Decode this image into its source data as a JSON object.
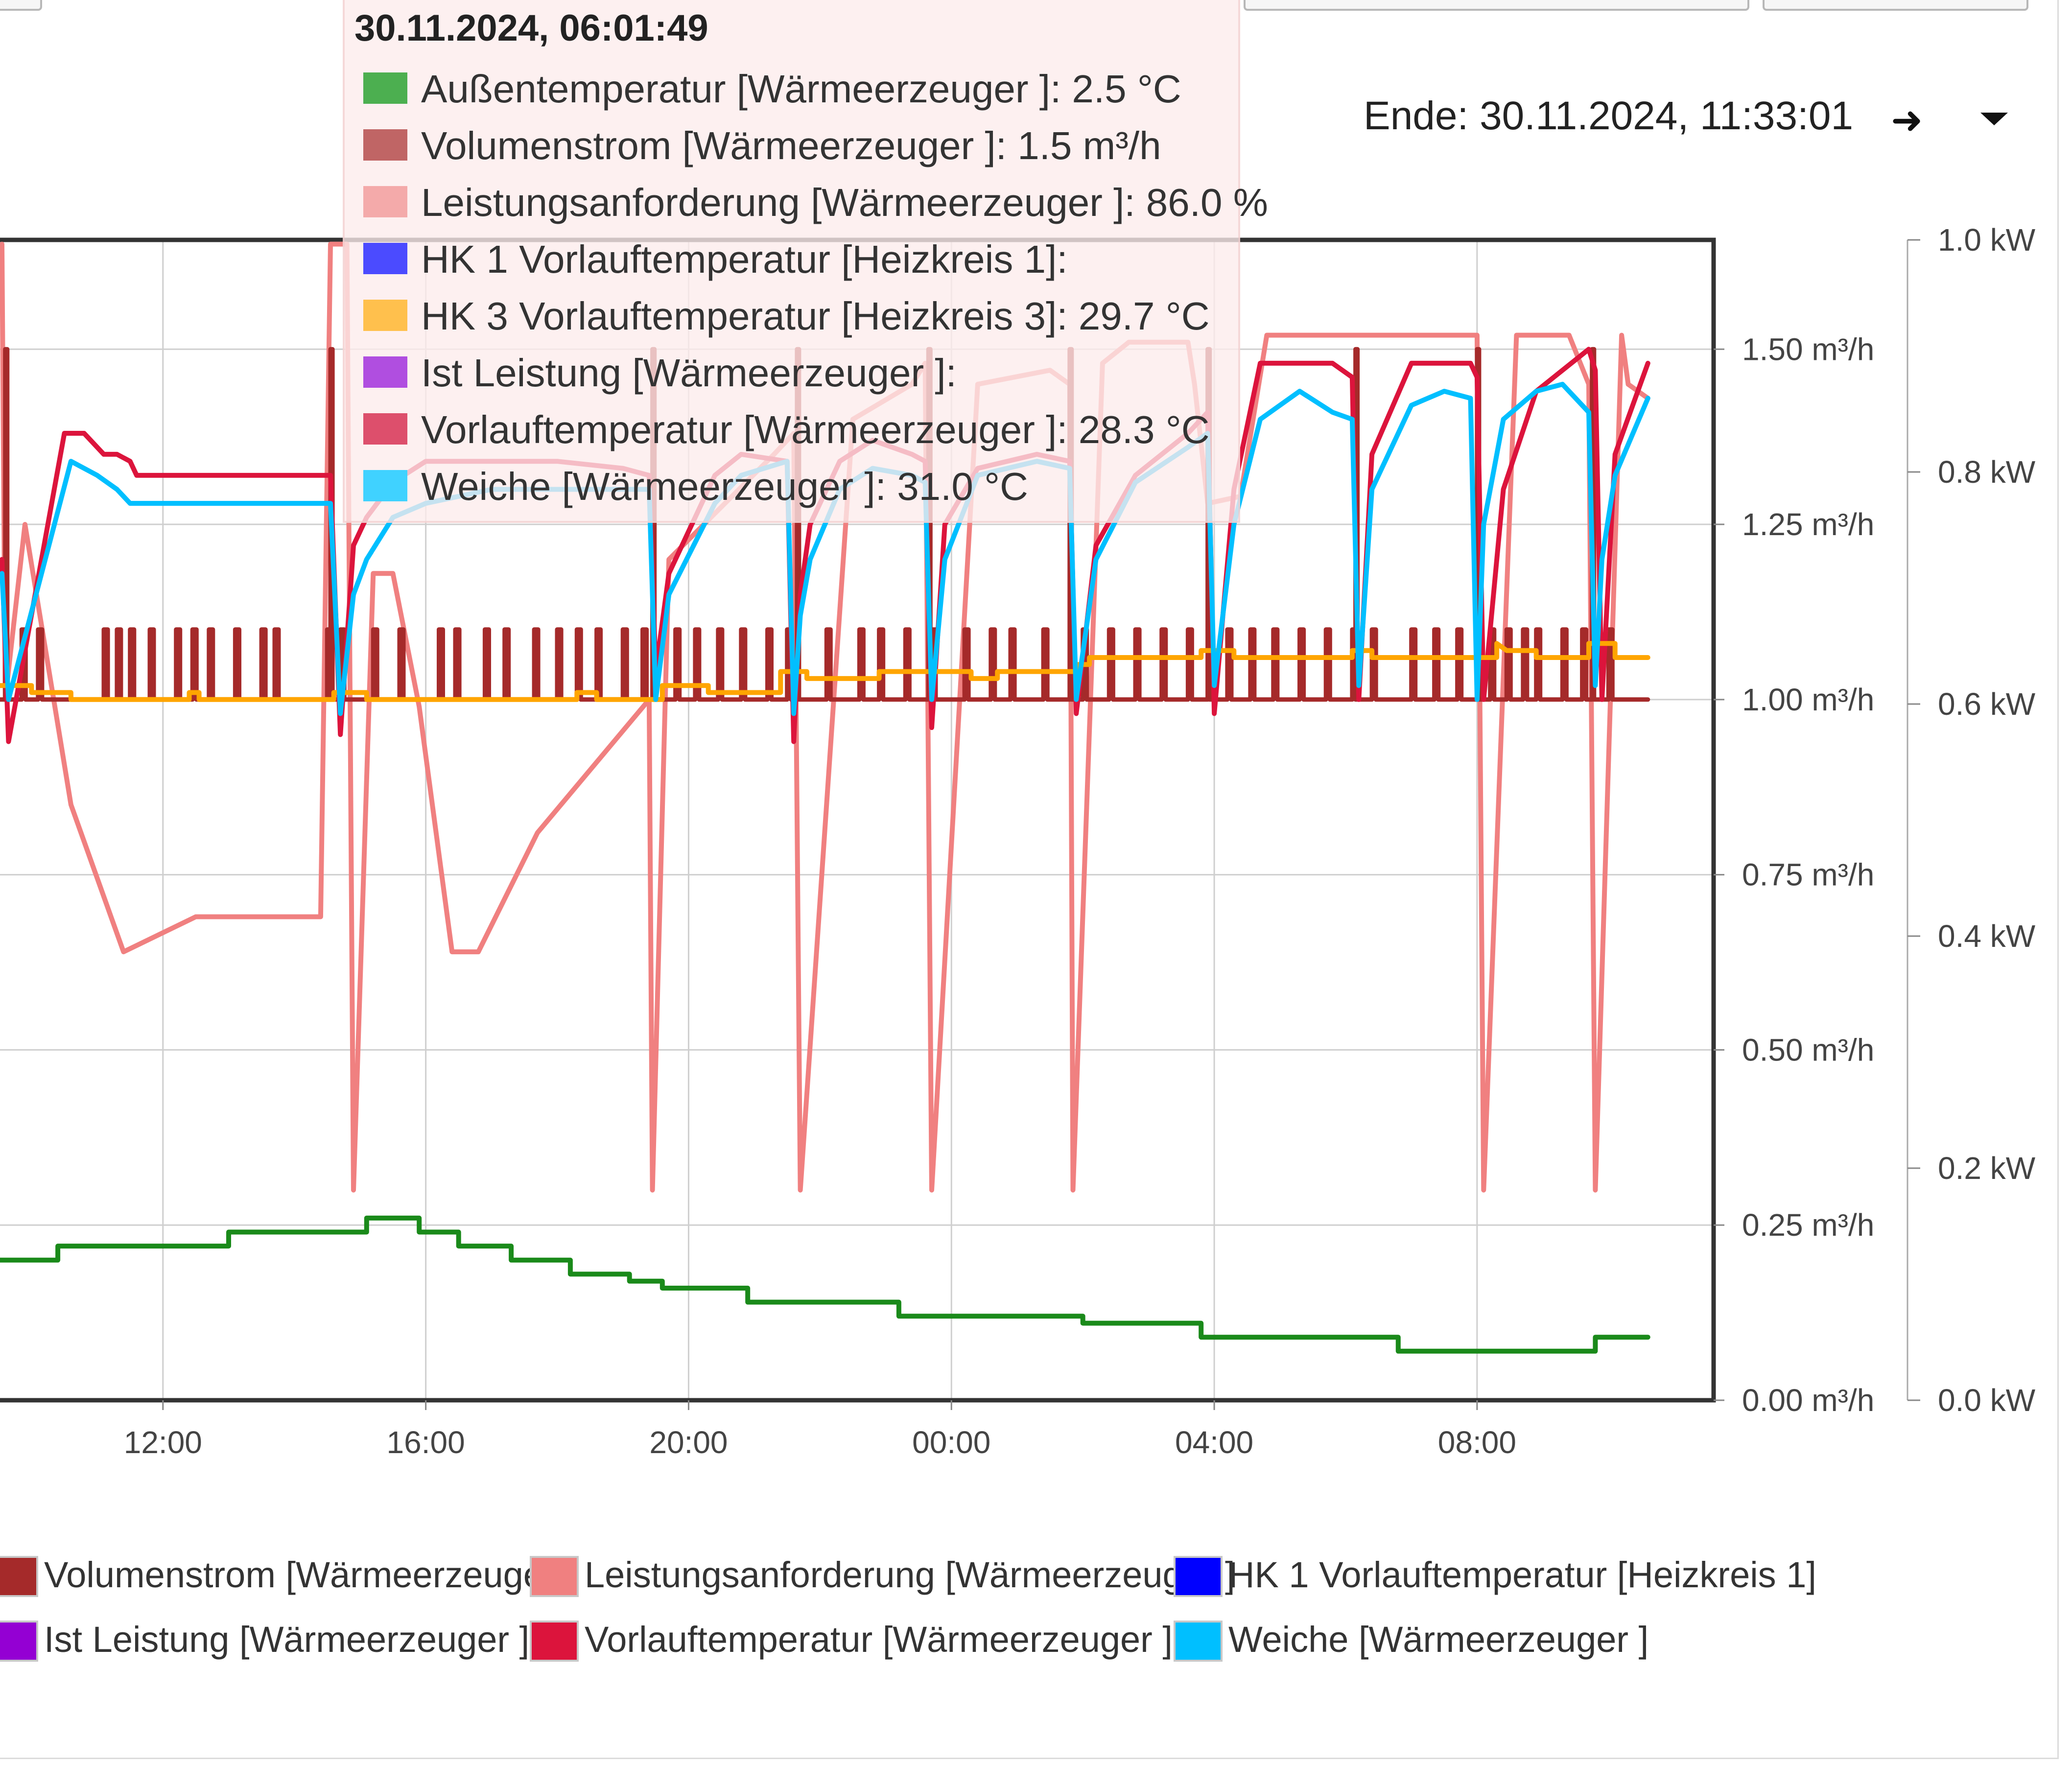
{
  "header": {
    "end_label": "Ende: 30.11.2024, 11:33:01",
    "forward_icon": "arrow-right-icon",
    "menu_icon": "caret-down-icon"
  },
  "tooltip": {
    "timestamp": "30.11.2024, 06:01:49",
    "rows": [
      {
        "label": "Außentemperatur [Wärmeerzeuger ]: 2.5 °C",
        "color": "#4caf50"
      },
      {
        "label": "Volumenstrom [Wärmeerzeuger ]: 1.5 m³/h",
        "color": "#c06565"
      },
      {
        "label": "Leistungsanforderung [Wärmeerzeuger ]: 86.0 %",
        "color": "#f4aaaa"
      },
      {
        "label": "HK 1 Vorlauftemperatur [Heizkreis 1]:",
        "color": "#4b4bff"
      },
      {
        "label": "HK 3 Vorlauftemperatur [Heizkreis 3]: 29.7 °C",
        "color": "#ffc04d"
      },
      {
        "label": "Ist Leistung [Wärmeerzeuger ]:",
        "color": "#b04ee0"
      },
      {
        "label": "Vorlauftemperatur [Wärmeerzeuger ]: 28.3 °C",
        "color": "#dd4f6c"
      },
      {
        "label": "Weiche [Wärmeerzeuger ]: 31.0 °C",
        "color": "#40d2ff"
      }
    ]
  },
  "legend": [
    {
      "label": "Volumenstrom [Wärmeerzeuger ]",
      "color": "#a52a2a"
    },
    {
      "label": "Leistungsanforderung [Wärmeerzeuger ]",
      "color": "#f08080"
    },
    {
      "label": "HK 1 Vorlauftemperatur [Heizkreis 1]",
      "color": "#0000ff"
    },
    {
      "label": "Ist Leistung [Wärmeerzeuger ]",
      "color": "#9400d3"
    },
    {
      "label": "Vorlauftemperatur [Wärmeerzeuger ]",
      "color": "#dc143c"
    },
    {
      "label": "Weiche [Wärmeerzeuger ]",
      "color": "#00bfff"
    }
  ],
  "chart_data": {
    "type": "line",
    "x_unit": "hours since 2024-11-29 00:00",
    "xlim": [
      9.52,
      35.6
    ],
    "x_ticks": [
      {
        "label": "12:00",
        "value": 12
      },
      {
        "label": "16:00",
        "value": 16
      },
      {
        "label": "20:00",
        "value": 20
      },
      {
        "label": "00:00",
        "value": 24
      },
      {
        "label": "04:00",
        "value": 28
      },
      {
        "label": "08:00",
        "value": 32
      }
    ],
    "y_left": {
      "ylim": [
        0,
        1.656
      ],
      "ticks": [
        "0.00 m³/h",
        "0.25 m³/h",
        "0.50 m³/h",
        "0.75 m³/h",
        "1.00 m³/h",
        "1.25 m³/h",
        "1.50 m³/h"
      ],
      "tick_values": [
        0,
        0.25,
        0.5,
        0.75,
        1.0,
        1.25,
        1.5
      ]
    },
    "y_right": {
      "ylim": [
        0,
        1.0
      ],
      "ticks": [
        "0.0 kW",
        "0.2 kW",
        "0.4 kW",
        "0.6 kW",
        "0.8 kW",
        "1.0 kW"
      ],
      "tick_values": [
        0,
        0.2,
        0.4,
        0.6,
        0.8,
        1.0
      ]
    },
    "series": [
      {
        "name": "Außentemperatur [Wärmeerzeuger ]",
        "color": "#1a8a1a",
        "x": [
          9.52,
          10.4,
          10.4,
          13.0,
          13.0,
          15.1,
          15.1,
          15.9,
          15.9,
          16.5,
          16.5,
          17.3,
          17.3,
          18.2,
          18.2,
          19.1,
          19.1,
          19.6,
          19.6,
          20.9,
          20.9,
          23.2,
          23.2,
          26.0,
          26.0,
          27.8,
          27.8,
          30.8,
          30.8,
          33.8,
          33.8,
          34.6
        ],
        "y": [
          0.2,
          0.2,
          0.22,
          0.22,
          0.24,
          0.24,
          0.26,
          0.26,
          0.24,
          0.24,
          0.22,
          0.22,
          0.2,
          0.2,
          0.18,
          0.18,
          0.17,
          0.17,
          0.16,
          0.16,
          0.14,
          0.14,
          0.12,
          0.12,
          0.11,
          0.11,
          0.09,
          0.09,
          0.07,
          0.07,
          0.09,
          0.09
        ]
      },
      {
        "name": "Leistungsanforderung [Wärmeerzeuger ]",
        "color": "#f08080",
        "x": [
          9.55,
          9.6,
          9.9,
          10.6,
          11.4,
          12.5,
          14.4,
          14.55,
          14.8,
          14.9,
          15.2,
          15.5,
          15.9,
          16.4,
          16.8,
          17.7,
          19.4,
          19.45,
          19.7,
          21.3,
          21.6,
          21.7,
          22.5,
          23.4,
          23.6,
          23.7,
          24.4,
          25.5,
          25.8,
          25.85,
          26.3,
          26.7,
          27.6,
          27.7,
          27.9,
          28.4,
          28.8,
          29.0,
          30.4,
          30.6,
          31.4,
          31.8,
          32.0,
          32.1,
          32.6,
          33.4,
          33.7,
          33.8,
          34.2,
          34.3,
          34.6
        ],
        "y": [
          1.65,
          1.0,
          1.25,
          0.85,
          0.64,
          0.69,
          0.69,
          1.65,
          1.65,
          0.3,
          1.18,
          1.18,
          0.99,
          0.64,
          0.64,
          0.81,
          1.0,
          0.3,
          1.2,
          1.35,
          1.38,
          0.3,
          1.4,
          1.45,
          1.48,
          0.3,
          1.45,
          1.47,
          1.45,
          0.3,
          1.48,
          1.51,
          1.51,
          1.45,
          1.28,
          1.29,
          1.52,
          1.52,
          1.52,
          1.52,
          1.52,
          1.52,
          1.52,
          0.3,
          1.52,
          1.52,
          1.45,
          0.3,
          1.52,
          1.45,
          1.43
        ]
      },
      {
        "name": "Volumenstrom [Wärmeerzeuger ]",
        "color": "#a52a2a",
        "pulses": [
          9.85,
          10.1,
          11.1,
          11.3,
          11.5,
          11.8,
          12.2,
          12.45,
          12.7,
          13.1,
          13.5,
          13.7,
          14.5,
          14.7,
          15.2,
          15.6,
          16.2,
          16.45,
          16.9,
          17.2,
          17.65,
          18.0,
          18.3,
          18.6,
          19.0,
          19.3,
          19.8,
          20.1,
          20.45,
          20.8,
          21.2,
          21.5,
          22.1,
          22.6,
          22.9,
          23.3,
          23.7,
          24.2,
          24.6,
          24.9,
          25.4,
          26.0,
          26.4,
          26.8,
          27.2,
          27.6,
          28.2,
          28.55,
          28.9,
          29.3,
          29.7,
          30.1,
          30.4,
          31.0,
          31.35,
          31.7,
          32.2,
          32.45,
          32.7,
          32.9,
          33.3,
          33.6,
          34.0
        ],
        "pulse_low": 1.0,
        "pulse_high": 1.1,
        "spikes": [
          9.6,
          14.55,
          19.45,
          21.65,
          23.65,
          25.8,
          27.9,
          30.15,
          32.0,
          33.75
        ],
        "spike_high": 1.5
      },
      {
        "name": "Vorlauftemperatur [Wärmeerzeuger ]",
        "color": "#dc143c",
        "x": [
          9.55,
          9.65,
          10.5,
          10.8,
          11.1,
          11.3,
          11.5,
          11.6,
          12.0,
          14.55,
          14.7,
          14.9,
          15.1,
          15.5,
          16.0,
          16.5,
          17.0,
          18.0,
          19.0,
          19.4,
          19.5,
          19.7,
          20.4,
          20.8,
          21.5,
          21.6,
          21.7,
          21.85,
          22.3,
          22.8,
          23.4,
          23.6,
          23.7,
          23.9,
          24.4,
          25.3,
          25.8,
          25.9,
          26.2,
          26.8,
          27.6,
          27.9,
          28.0,
          28.3,
          28.7,
          29.8,
          30.1,
          30.2,
          30.4,
          31.0,
          31.9,
          32.0,
          32.1,
          32.4,
          32.9,
          33.7,
          33.8,
          33.9,
          34.1,
          34.6
        ],
        "y": [
          1.2,
          0.94,
          1.38,
          1.38,
          1.35,
          1.35,
          1.34,
          1.32,
          1.32,
          1.32,
          0.95,
          1.22,
          1.26,
          1.31,
          1.34,
          1.34,
          1.34,
          1.34,
          1.33,
          1.32,
          1.04,
          1.18,
          1.32,
          1.35,
          1.34,
          0.94,
          1.15,
          1.25,
          1.34,
          1.37,
          1.35,
          1.34,
          0.96,
          1.25,
          1.33,
          1.35,
          1.34,
          0.98,
          1.22,
          1.32,
          1.38,
          1.41,
          0.98,
          1.3,
          1.48,
          1.48,
          1.46,
          1.0,
          1.35,
          1.48,
          1.48,
          1.46,
          1.0,
          1.3,
          1.44,
          1.5,
          1.47,
          1.0,
          1.35,
          1.48
        ]
      },
      {
        "name": "HK 3 Vorlauftemperatur [Heizkreis 3]",
        "color": "#ffa500",
        "x": [
          9.52,
          10.0,
          10.0,
          10.6,
          10.6,
          12.4,
          12.4,
          12.55,
          12.55,
          14.6,
          14.6,
          15.1,
          15.1,
          15.4,
          15.4,
          18.3,
          18.3,
          18.6,
          18.6,
          19.6,
          19.6,
          20.3,
          20.3,
          21.4,
          21.4,
          21.8,
          21.8,
          22.9,
          22.9,
          24.3,
          24.3,
          24.7,
          24.7,
          25.9,
          25.9,
          26.1,
          26.1,
          27.8,
          27.8,
          28.3,
          28.3,
          28.6,
          28.6,
          30.1,
          30.1,
          30.4,
          30.4,
          30.7,
          30.7,
          31.8,
          31.8,
          32.3,
          32.3,
          32.45,
          32.6,
          32.9,
          32.9,
          33.7,
          33.7,
          34.1,
          34.1,
          34.6
        ],
        "y": [
          1.02,
          1.02,
          1.01,
          1.01,
          1.0,
          1.0,
          1.01,
          1.01,
          1.0,
          1.0,
          1.01,
          1.01,
          1.0,
          1.0,
          1.0,
          1.0,
          1.01,
          1.01,
          1.0,
          1.0,
          1.02,
          1.02,
          1.01,
          1.01,
          1.04,
          1.04,
          1.03,
          1.03,
          1.04,
          1.04,
          1.03,
          1.03,
          1.04,
          1.04,
          1.05,
          1.05,
          1.06,
          1.06,
          1.07,
          1.07,
          1.06,
          1.06,
          1.06,
          1.06,
          1.07,
          1.07,
          1.06,
          1.06,
          1.06,
          1.06,
          1.06,
          1.06,
          1.08,
          1.07,
          1.07,
          1.07,
          1.06,
          1.06,
          1.08,
          1.08,
          1.06,
          1.06
        ]
      },
      {
        "name": "Weiche [Wärmeerzeuger ]",
        "color": "#00bfff",
        "x": [
          9.55,
          9.65,
          10.6,
          11.0,
          11.3,
          11.5,
          11.6,
          11.9,
          12.2,
          14.55,
          14.7,
          14.9,
          15.1,
          15.5,
          16.0,
          16.5,
          17.0,
          18.0,
          19.0,
          19.4,
          19.5,
          19.7,
          20.4,
          20.8,
          21.5,
          21.6,
          21.7,
          21.85,
          22.3,
          22.8,
          23.4,
          23.6,
          23.7,
          23.9,
          24.4,
          25.3,
          25.8,
          25.9,
          26.2,
          26.8,
          27.6,
          27.9,
          28.0,
          28.3,
          28.7,
          29.3,
          29.8,
          30.1,
          30.2,
          30.4,
          31.0,
          31.5,
          31.9,
          32.0,
          32.1,
          32.4,
          32.9,
          33.3,
          33.7,
          33.8,
          33.9,
          34.1,
          34.6
        ],
        "y": [
          1.18,
          1.0,
          1.34,
          1.32,
          1.3,
          1.28,
          1.28,
          1.28,
          1.28,
          1.28,
          0.98,
          1.15,
          1.2,
          1.26,
          1.28,
          1.29,
          1.3,
          1.3,
          1.3,
          1.3,
          1.0,
          1.15,
          1.28,
          1.32,
          1.34,
          0.98,
          1.12,
          1.2,
          1.3,
          1.33,
          1.32,
          1.31,
          1.0,
          1.2,
          1.32,
          1.34,
          1.33,
          1.0,
          1.2,
          1.31,
          1.36,
          1.38,
          1.02,
          1.25,
          1.4,
          1.44,
          1.41,
          1.4,
          1.02,
          1.3,
          1.42,
          1.44,
          1.43,
          1.0,
          1.25,
          1.4,
          1.44,
          1.45,
          1.41,
          1.02,
          1.2,
          1.32,
          1.43
        ]
      }
    ]
  }
}
